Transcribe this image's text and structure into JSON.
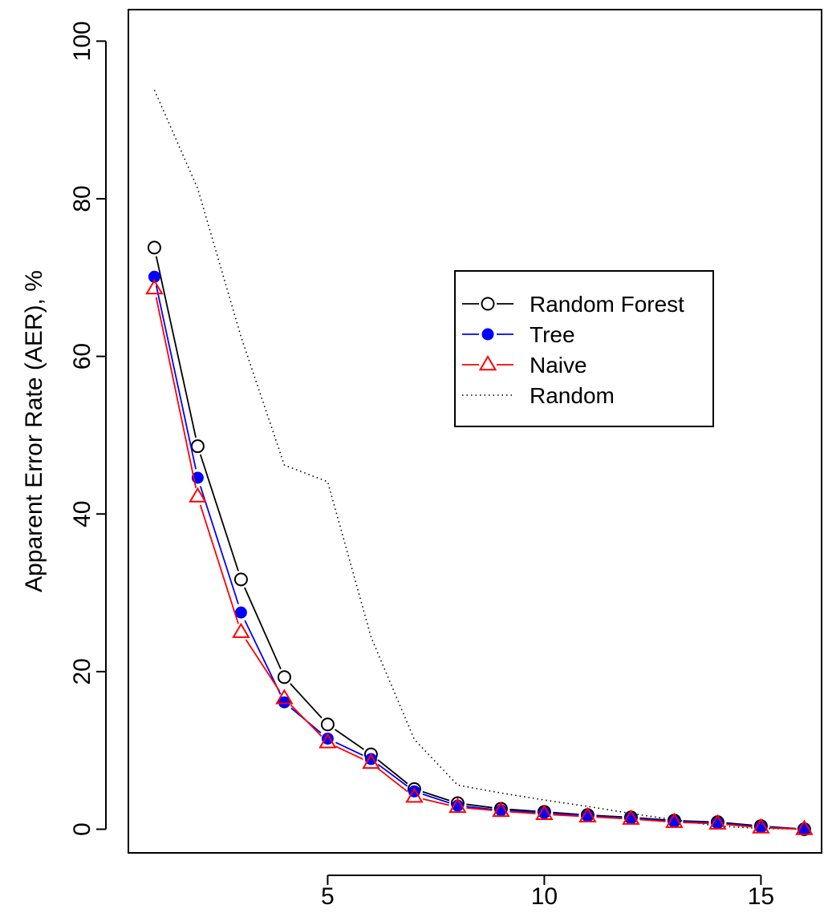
{
  "chart_data": {
    "type": "line",
    "title": "",
    "xlabel": "",
    "ylabel": "Apparent Error Rate (AER), %",
    "xlim": [
      0.4,
      16.4
    ],
    "ylim": [
      -3,
      104
    ],
    "x_ticks": [
      5,
      10,
      15
    ],
    "y_ticks": [
      0,
      20,
      40,
      60,
      80,
      100
    ],
    "grid": false,
    "legend_position": "right-center",
    "x": [
      1,
      2,
      3,
      4,
      5,
      6,
      7,
      8,
      9,
      10,
      11,
      12,
      13,
      14,
      15,
      16
    ],
    "series": [
      {
        "name": "Random Forest",
        "marker": "open-circle",
        "line_style": "solid",
        "color": "#000000",
        "values": [
          73.8,
          48.6,
          31.7,
          19.3,
          13.3,
          9.5,
          5.1,
          3.3,
          2.6,
          2.2,
          1.8,
          1.5,
          1.1,
          0.9,
          0.4,
          0
        ]
      },
      {
        "name": "Tree",
        "marker": "filled-circle",
        "line_style": "solid",
        "color": "#0000ff",
        "values": [
          70.1,
          44.6,
          27.5,
          16.1,
          11.5,
          8.9,
          4.8,
          3.0,
          2.4,
          2.1,
          1.7,
          1.4,
          1.0,
          0.8,
          0.3,
          0
        ]
      },
      {
        "name": "Naive",
        "marker": "open-triangle",
        "line_style": "solid",
        "color": "#ff0000",
        "values": [
          68.6,
          42.2,
          25.0,
          16.6,
          11.0,
          8.4,
          4.1,
          2.8,
          2.3,
          1.9,
          1.6,
          1.3,
          0.9,
          0.7,
          0.2,
          0
        ]
      },
      {
        "name": "Random",
        "marker": "none",
        "line_style": "dotted",
        "color": "#000000",
        "values": [
          93.8,
          81.3,
          62.5,
          46.2,
          44.1,
          24.4,
          11.4,
          5.6,
          4.6,
          3.7,
          2.9,
          2.0,
          1.2,
          0.4,
          0.1,
          0
        ]
      }
    ]
  }
}
